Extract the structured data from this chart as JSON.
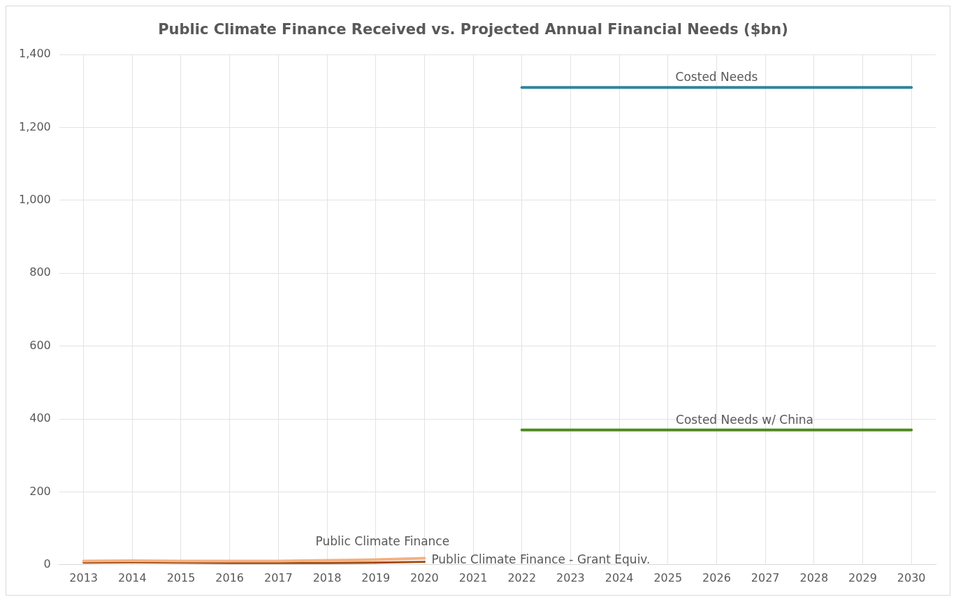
{
  "chart_data": {
    "type": "line",
    "title": "Public Climate Finance Received vs. Projected Annual Financial Needs ($bn)",
    "categories": [
      "2013",
      "2014",
      "2015",
      "2016",
      "2017",
      "2018",
      "2019",
      "2020",
      "2021",
      "2022",
      "2023",
      "2024",
      "2025",
      "2026",
      "2027",
      "2028",
      "2029",
      "2030"
    ],
    "series": [
      {
        "name": "Costed Needs",
        "color": "#31859c",
        "values": [
          null,
          null,
          null,
          null,
          null,
          null,
          null,
          null,
          null,
          1310,
          1310,
          1310,
          1310,
          1310,
          1310,
          1310,
          1310,
          1310
        ]
      },
      {
        "name": "Costed Needs w/ China",
        "color": "#4e8a21",
        "values": [
          null,
          null,
          null,
          null,
          null,
          null,
          null,
          null,
          null,
          370,
          370,
          370,
          370,
          370,
          370,
          370,
          370,
          370
        ]
      },
      {
        "name": "Public Climate Finance",
        "color": "#f4b183",
        "values": [
          10,
          11,
          10,
          10,
          10,
          12,
          14,
          18,
          null,
          null,
          null,
          null,
          null,
          null,
          null,
          null,
          null,
          null
        ]
      },
      {
        "name": "Public Climate Finance - Grant Equiv.",
        "color": "#a0490c",
        "values": [
          6,
          7,
          6,
          5,
          5,
          5,
          6,
          8,
          null,
          null,
          null,
          null,
          null,
          null,
          null,
          null,
          null,
          null
        ]
      }
    ],
    "ylim": [
      0,
      1400
    ],
    "yticks": [
      0,
      200,
      400,
      600,
      800,
      {
        "value": 1000,
        "label": "1,000"
      },
      {
        "value": 1200,
        "label": "1,200"
      },
      {
        "value": 1400,
        "label": "1,400"
      }
    ],
    "grid": true,
    "legend": false,
    "marker": "none",
    "line_style": "solid"
  }
}
